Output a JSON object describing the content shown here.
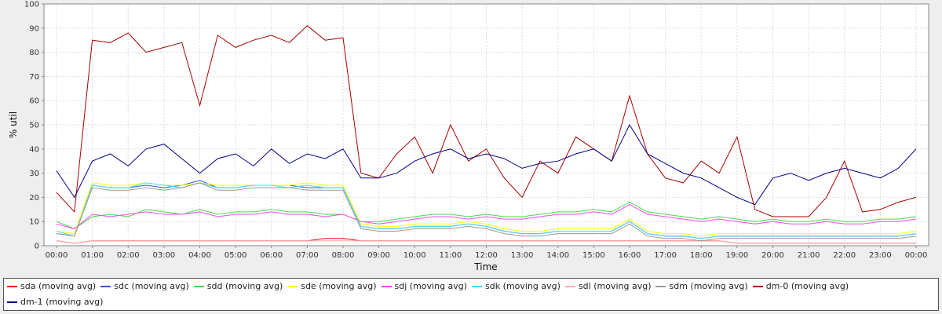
{
  "chart_data": {
    "type": "line",
    "xlabel": "Time",
    "ylabel": "% util",
    "ylim": [
      0,
      100
    ],
    "yticks": [
      0,
      10,
      20,
      30,
      40,
      50,
      60,
      70,
      80,
      90,
      100
    ],
    "xticks": [
      "00:00",
      "01:00",
      "02:00",
      "03:00",
      "04:00",
      "05:00",
      "06:00",
      "07:00",
      "08:00",
      "09:00",
      "10:00",
      "11:00",
      "12:00",
      "13:00",
      "14:00",
      "15:00",
      "16:00",
      "17:00",
      "18:00",
      "19:00",
      "20:00",
      "21:00",
      "22:00",
      "23:00",
      "00:00"
    ],
    "xlim_hours": [
      0,
      24
    ],
    "grid": true,
    "legend_position": "bottom",
    "x_hours": [
      0,
      0.5,
      1,
      1.5,
      2,
      2.5,
      3,
      3.5,
      4,
      4.5,
      5,
      5.5,
      6,
      6.5,
      7,
      7.5,
      8,
      8.5,
      9,
      9.5,
      10,
      10.5,
      11,
      11.5,
      12,
      12.5,
      13,
      13.5,
      14,
      14.5,
      15,
      15.5,
      16,
      16.5,
      17,
      17.5,
      18,
      18.5,
      19,
      19.5,
      20,
      20.5,
      21,
      21.5,
      22,
      22.5,
      23,
      23.5,
      24
    ],
    "series": [
      {
        "name": "sda (moving avg)",
        "color": "#ff0000",
        "values": [
          2,
          1,
          2,
          2,
          2,
          2,
          2,
          2,
          2,
          2,
          2,
          2,
          2,
          2,
          2,
          3,
          3,
          2,
          2,
          2,
          2,
          2,
          2,
          2,
          2,
          2,
          2,
          2,
          2,
          2,
          2,
          2,
          2,
          2,
          2,
          2,
          2,
          2,
          1,
          1,
          1,
          1,
          1,
          1,
          1,
          1,
          1,
          1,
          1
        ]
      },
      {
        "name": "sdc (moving avg)",
        "color": "#3355dd",
        "values": [
          5,
          4,
          25,
          24,
          24,
          25,
          24,
          25,
          27,
          24,
          24,
          25,
          25,
          25,
          24,
          24,
          24,
          8,
          7,
          7,
          8,
          8,
          8,
          9,
          8,
          6,
          5,
          5,
          6,
          6,
          6,
          6,
          10,
          5,
          4,
          4,
          3,
          4,
          4,
          4,
          4,
          4,
          4,
          4,
          4,
          4,
          4,
          4,
          5
        ]
      },
      {
        "name": "sdd (moving avg)",
        "color": "#44dd44",
        "values": [
          10,
          7,
          12,
          13,
          12,
          15,
          14,
          13,
          15,
          13,
          14,
          14,
          15,
          14,
          14,
          13,
          13,
          10,
          10,
          11,
          12,
          13,
          13,
          12,
          13,
          12,
          12,
          13,
          14,
          14,
          15,
          14,
          18,
          14,
          13,
          12,
          11,
          12,
          11,
          10,
          11,
          10,
          10,
          11,
          10,
          10,
          11,
          11,
          12
        ]
      },
      {
        "name": "sde (moving avg)",
        "color": "#ffff00",
        "values": [
          6,
          5,
          26,
          25,
          25,
          26,
          25,
          25,
          26,
          25,
          25,
          25,
          25,
          25,
          26,
          25,
          25,
          9,
          8,
          8,
          9,
          9,
          9,
          10,
          9,
          7,
          6,
          6,
          7,
          7,
          7,
          7,
          11,
          6,
          5,
          5,
          4,
          5,
          5,
          5,
          5,
          5,
          5,
          5,
          5,
          5,
          5,
          5,
          6
        ]
      },
      {
        "name": "sdj (moving avg)",
        "color": "#ff44ff",
        "values": [
          9,
          7,
          13,
          12,
          13,
          14,
          13,
          13,
          14,
          12,
          13,
          13,
          14,
          13,
          13,
          12,
          13,
          10,
          9,
          10,
          11,
          12,
          12,
          11,
          12,
          11,
          11,
          12,
          13,
          13,
          14,
          13,
          17,
          13,
          12,
          11,
          10,
          11,
          10,
          9,
          10,
          9,
          9,
          10,
          9,
          9,
          10,
          10,
          11
        ]
      },
      {
        "name": "sdk (moving avg)",
        "color": "#44ddff",
        "values": [
          6,
          4,
          25,
          24,
          24,
          26,
          25,
          24,
          26,
          24,
          24,
          25,
          25,
          24,
          25,
          24,
          24,
          8,
          7,
          7,
          8,
          8,
          8,
          9,
          8,
          6,
          5,
          5,
          6,
          6,
          6,
          6,
          10,
          5,
          4,
          4,
          3,
          4,
          4,
          4,
          4,
          4,
          4,
          4,
          4,
          4,
          4,
          4,
          5
        ]
      },
      {
        "name": "sdl (moving avg)",
        "color": "#ffaaaa",
        "values": [
          2,
          1,
          2,
          2,
          2,
          2,
          2,
          2,
          2,
          2,
          2,
          2,
          2,
          2,
          2,
          2,
          2,
          2,
          2,
          2,
          2,
          2,
          2,
          2,
          2,
          2,
          2,
          2,
          2,
          2,
          2,
          2,
          2,
          2,
          2,
          2,
          2,
          2,
          1,
          1,
          1,
          1,
          1,
          1,
          1,
          1,
          1,
          1,
          1
        ]
      },
      {
        "name": "sdm (moving avg)",
        "color": "#999999",
        "values": [
          5,
          4,
          24,
          23,
          23,
          24,
          23,
          24,
          26,
          23,
          23,
          24,
          24,
          24,
          23,
          23,
          23,
          7,
          6,
          6,
          7,
          7,
          7,
          8,
          7,
          5,
          4,
          4,
          5,
          5,
          5,
          5,
          9,
          4,
          3,
          3,
          2,
          3,
          3,
          3,
          3,
          3,
          3,
          3,
          3,
          3,
          3,
          3,
          4
        ]
      },
      {
        "name": "dm-0 (moving avg)",
        "color": "#aa0000",
        "values": [
          22,
          14,
          85,
          84,
          88,
          80,
          82,
          84,
          58,
          87,
          82,
          85,
          87,
          84,
          91,
          85,
          86,
          30,
          28,
          38,
          45,
          30,
          50,
          35,
          40,
          28,
          20,
          35,
          30,
          45,
          40,
          35,
          62,
          38,
          28,
          26,
          35,
          30,
          45,
          15,
          12,
          12,
          12,
          20,
          35,
          14,
          15,
          18,
          20
        ]
      },
      {
        "name": "dm-1 (moving avg)",
        "color": "#000088",
        "values": [
          31,
          20,
          35,
          38,
          33,
          40,
          42,
          36,
          30,
          36,
          38,
          33,
          40,
          34,
          38,
          36,
          40,
          28,
          28,
          30,
          35,
          38,
          40,
          36,
          38,
          36,
          32,
          34,
          35,
          38,
          40,
          35,
          50,
          38,
          34,
          30,
          28,
          24,
          20,
          17,
          28,
          30,
          27,
          30,
          32,
          30,
          28,
          32,
          40
        ]
      },
      {
        "name": "",
        "color": "#000000",
        "values": []
      }
    ]
  }
}
